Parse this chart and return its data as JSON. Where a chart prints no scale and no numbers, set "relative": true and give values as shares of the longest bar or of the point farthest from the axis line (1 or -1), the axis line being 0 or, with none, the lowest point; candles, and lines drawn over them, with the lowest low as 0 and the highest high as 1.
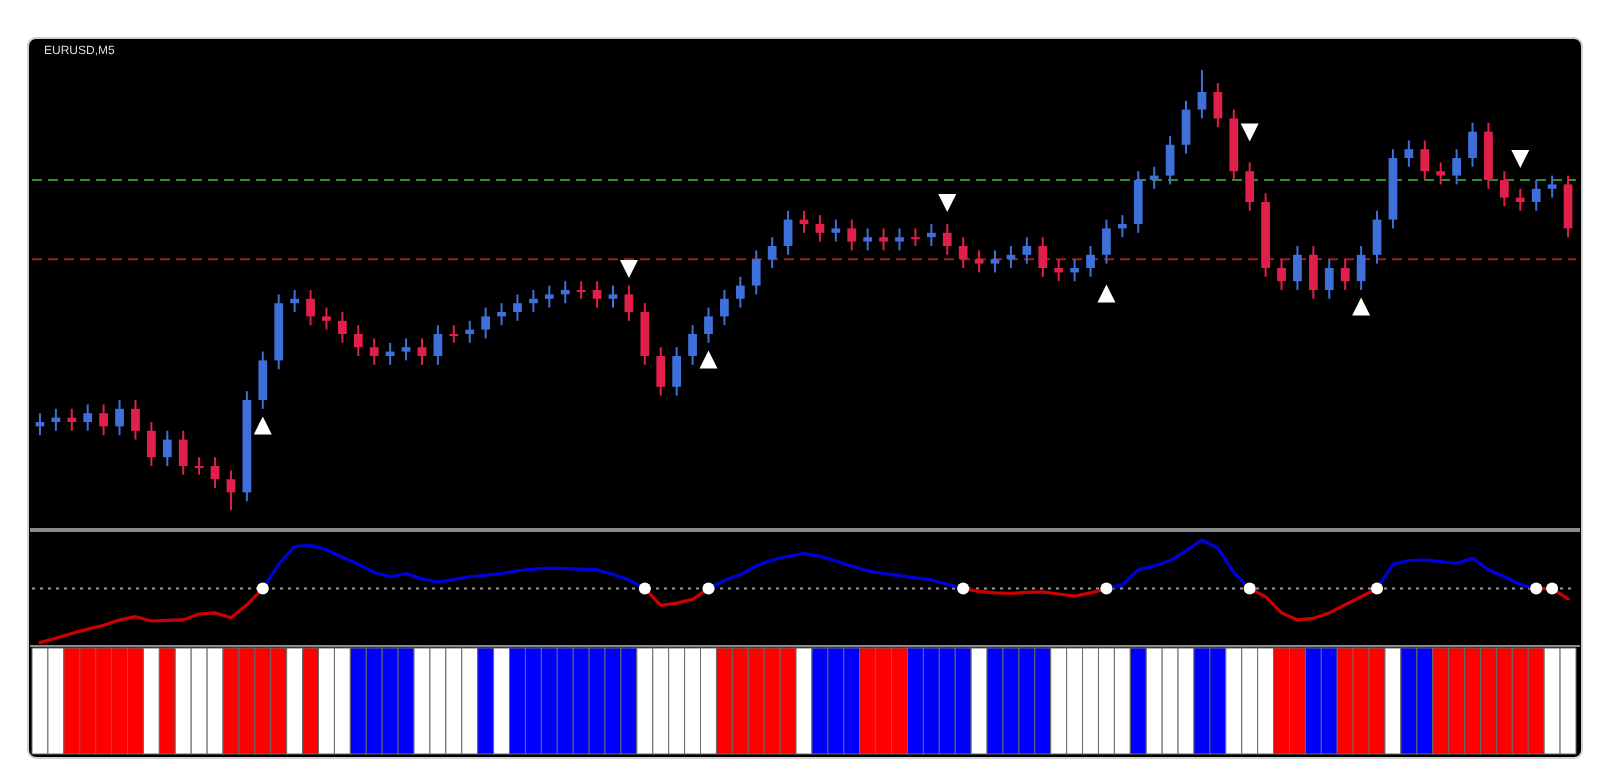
{
  "chart_data": [
    {
      "type": "candlestick",
      "title": "EURUSD,M5",
      "relative": true,
      "categories": [
        null,
        null,
        null,
        null,
        null,
        null,
        null,
        null,
        null,
        null,
        null,
        null,
        null,
        null,
        null,
        null,
        null,
        null,
        null,
        null,
        null,
        null,
        null,
        null,
        null,
        null,
        null,
        null,
        null,
        null,
        null,
        null,
        null,
        null,
        null,
        null,
        null,
        null,
        null,
        null,
        null,
        null,
        null,
        null,
        null,
        null,
        null,
        null,
        null,
        null,
        null,
        null,
        null,
        null,
        null,
        null,
        null,
        null,
        null,
        null,
        null,
        null,
        null,
        null,
        null,
        null,
        null,
        null,
        null,
        null,
        null,
        null,
        null,
        null,
        null,
        null,
        null,
        null,
        null,
        null,
        null,
        null,
        null,
        null,
        null,
        null,
        null,
        null,
        null,
        null,
        null,
        null,
        null,
        null,
        null,
        null,
        null
      ],
      "ohlc": [
        [
          0.19,
          0.22,
          0.17,
          0.2
        ],
        [
          0.2,
          0.23,
          0.18,
          0.21
        ],
        [
          0.21,
          0.23,
          0.18,
          0.2
        ],
        [
          0.2,
          0.24,
          0.18,
          0.22
        ],
        [
          0.22,
          0.24,
          0.17,
          0.19
        ],
        [
          0.19,
          0.25,
          0.17,
          0.23
        ],
        [
          0.23,
          0.25,
          0.16,
          0.18
        ],
        [
          0.18,
          0.2,
          0.1,
          0.12
        ],
        [
          0.12,
          0.18,
          0.1,
          0.16
        ],
        [
          0.16,
          0.18,
          0.08,
          0.1
        ],
        [
          0.1,
          0.12,
          0.08,
          0.1
        ],
        [
          0.1,
          0.12,
          0.05,
          0.07
        ],
        [
          0.07,
          0.09,
          0.0,
          0.04
        ],
        [
          0.04,
          0.27,
          0.02,
          0.25
        ],
        [
          0.25,
          0.36,
          0.23,
          0.34
        ],
        [
          0.34,
          0.49,
          0.32,
          0.47
        ],
        [
          0.47,
          0.5,
          0.45,
          0.48
        ],
        [
          0.48,
          0.5,
          0.42,
          0.44
        ],
        [
          0.44,
          0.46,
          0.41,
          0.43
        ],
        [
          0.43,
          0.45,
          0.38,
          0.4
        ],
        [
          0.4,
          0.42,
          0.35,
          0.37
        ],
        [
          0.37,
          0.39,
          0.33,
          0.35
        ],
        [
          0.35,
          0.38,
          0.33,
          0.36
        ],
        [
          0.36,
          0.39,
          0.34,
          0.37
        ],
        [
          0.37,
          0.39,
          0.33,
          0.35
        ],
        [
          0.35,
          0.42,
          0.33,
          0.4
        ],
        [
          0.4,
          0.42,
          0.38,
          0.4
        ],
        [
          0.4,
          0.43,
          0.38,
          0.41
        ],
        [
          0.41,
          0.46,
          0.39,
          0.44
        ],
        [
          0.44,
          0.47,
          0.42,
          0.45
        ],
        [
          0.45,
          0.49,
          0.43,
          0.47
        ],
        [
          0.47,
          0.5,
          0.45,
          0.48
        ],
        [
          0.48,
          0.51,
          0.46,
          0.49
        ],
        [
          0.49,
          0.52,
          0.47,
          0.5
        ],
        [
          0.5,
          0.52,
          0.48,
          0.5
        ],
        [
          0.5,
          0.52,
          0.46,
          0.48
        ],
        [
          0.48,
          0.51,
          0.46,
          0.49
        ],
        [
          0.49,
          0.51,
          0.43,
          0.45
        ],
        [
          0.45,
          0.47,
          0.33,
          0.35
        ],
        [
          0.35,
          0.37,
          0.26,
          0.28
        ],
        [
          0.28,
          0.37,
          0.26,
          0.35
        ],
        [
          0.35,
          0.42,
          0.33,
          0.4
        ],
        [
          0.4,
          0.46,
          0.38,
          0.44
        ],
        [
          0.44,
          0.5,
          0.42,
          0.48
        ],
        [
          0.48,
          0.53,
          0.46,
          0.51
        ],
        [
          0.51,
          0.59,
          0.49,
          0.57
        ],
        [
          0.57,
          0.62,
          0.55,
          0.6
        ],
        [
          0.6,
          0.68,
          0.58,
          0.66
        ],
        [
          0.66,
          0.68,
          0.63,
          0.65
        ],
        [
          0.65,
          0.67,
          0.61,
          0.63
        ],
        [
          0.63,
          0.66,
          0.61,
          0.64
        ],
        [
          0.64,
          0.66,
          0.59,
          0.61
        ],
        [
          0.61,
          0.64,
          0.59,
          0.62
        ],
        [
          0.62,
          0.64,
          0.59,
          0.61
        ],
        [
          0.61,
          0.64,
          0.59,
          0.62
        ],
        [
          0.62,
          0.64,
          0.6,
          0.62
        ],
        [
          0.62,
          0.65,
          0.6,
          0.63
        ],
        [
          0.63,
          0.65,
          0.58,
          0.6
        ],
        [
          0.6,
          0.62,
          0.55,
          0.57
        ],
        [
          0.57,
          0.59,
          0.54,
          0.56
        ],
        [
          0.56,
          0.59,
          0.54,
          0.57
        ],
        [
          0.57,
          0.6,
          0.55,
          0.58
        ],
        [
          0.58,
          0.62,
          0.56,
          0.6
        ],
        [
          0.6,
          0.62,
          0.53,
          0.55
        ],
        [
          0.55,
          0.57,
          0.52,
          0.54
        ],
        [
          0.54,
          0.57,
          0.52,
          0.55
        ],
        [
          0.55,
          0.6,
          0.53,
          0.58
        ],
        [
          0.58,
          0.66,
          0.56,
          0.64
        ],
        [
          0.64,
          0.67,
          0.62,
          0.65
        ],
        [
          0.65,
          0.77,
          0.63,
          0.75
        ],
        [
          0.75,
          0.78,
          0.73,
          0.76
        ],
        [
          0.76,
          0.85,
          0.74,
          0.83
        ],
        [
          0.83,
          0.93,
          0.81,
          0.91
        ],
        [
          0.91,
          1.0,
          0.89,
          0.95
        ],
        [
          0.95,
          0.97,
          0.87,
          0.89
        ],
        [
          0.89,
          0.91,
          0.75,
          0.77
        ],
        [
          0.77,
          0.79,
          0.68,
          0.7
        ],
        [
          0.7,
          0.72,
          0.53,
          0.55
        ],
        [
          0.55,
          0.57,
          0.5,
          0.52
        ],
        [
          0.52,
          0.6,
          0.5,
          0.58
        ],
        [
          0.58,
          0.6,
          0.48,
          0.5
        ],
        [
          0.5,
          0.57,
          0.48,
          0.55
        ],
        [
          0.55,
          0.57,
          0.5,
          0.52
        ],
        [
          0.52,
          0.6,
          0.5,
          0.58
        ],
        [
          0.58,
          0.68,
          0.56,
          0.66
        ],
        [
          0.66,
          0.82,
          0.64,
          0.8
        ],
        [
          0.8,
          0.84,
          0.78,
          0.82
        ],
        [
          0.82,
          0.84,
          0.75,
          0.77
        ],
        [
          0.77,
          0.79,
          0.74,
          0.76
        ],
        [
          0.76,
          0.82,
          0.74,
          0.8
        ],
        [
          0.8,
          0.88,
          0.78,
          0.86
        ],
        [
          0.86,
          0.88,
          0.73,
          0.75
        ],
        [
          0.75,
          0.77,
          0.69,
          0.71
        ],
        [
          0.71,
          0.73,
          0.68,
          0.7
        ],
        [
          0.7,
          0.75,
          0.68,
          0.73
        ],
        [
          0.73,
          0.76,
          0.71,
          0.74
        ],
        [
          0.74,
          0.76,
          0.62,
          0.64
        ]
      ],
      "colors": [
        "#3f6fd8",
        "#3f6fd8",
        "#e0204a",
        "#3f6fd8",
        "#e0204a",
        "#3f6fd8",
        "#e0204a",
        "#e0204a",
        "#3f6fd8",
        "#e0204a",
        "#e0204a",
        "#e0204a",
        "#e0204a",
        "#3f6fd8",
        "#3f6fd8",
        "#3f6fd8",
        "#3f6fd8",
        "#e0204a",
        "#e0204a",
        "#e0204a",
        "#e0204a",
        "#e0204a",
        "#3f6fd8",
        "#3f6fd8",
        "#e0204a",
        "#3f6fd8",
        "#e0204a",
        "#3f6fd8",
        "#3f6fd8",
        "#3f6fd8",
        "#3f6fd8",
        "#3f6fd8",
        "#3f6fd8",
        "#3f6fd8",
        "#e0204a",
        "#e0204a",
        "#3f6fd8",
        "#e0204a",
        "#e0204a",
        "#e0204a",
        "#3f6fd8",
        "#3f6fd8",
        "#3f6fd8",
        "#3f6fd8",
        "#3f6fd8",
        "#3f6fd8",
        "#3f6fd8",
        "#3f6fd8",
        "#e0204a",
        "#e0204a",
        "#3f6fd8",
        "#e0204a",
        "#3f6fd8",
        "#e0204a",
        "#3f6fd8",
        "#e0204a",
        "#3f6fd8",
        "#e0204a",
        "#e0204a",
        "#e0204a",
        "#3f6fd8",
        "#3f6fd8",
        "#3f6fd8",
        "#e0204a",
        "#e0204a",
        "#3f6fd8",
        "#3f6fd8",
        "#3f6fd8",
        "#3f6fd8",
        "#3f6fd8",
        "#3f6fd8",
        "#3f6fd8",
        "#3f6fd8",
        "#3f6fd8",
        "#e0204a",
        "#e0204a",
        "#e0204a",
        "#e0204a",
        "#e0204a",
        "#3f6fd8",
        "#e0204a",
        "#3f6fd8",
        "#e0204a",
        "#3f6fd8",
        "#3f6fd8",
        "#3f6fd8",
        "#3f6fd8",
        "#e0204a",
        "#e0204a",
        "#3f6fd8",
        "#3f6fd8",
        "#e0204a",
        "#e0204a",
        "#e0204a",
        "#3f6fd8",
        "#3f6fd8",
        "#e0204a"
      ],
      "ref_lines": [
        {
          "axis": "y",
          "value": 0.75,
          "color": "#2f8f2f",
          "line_style": "dashed"
        },
        {
          "axis": "y",
          "value": 0.57,
          "color": "#a01c1c",
          "line_style": "dashed"
        }
      ],
      "series": [
        {
          "type": "scatter",
          "marker": "triangle",
          "color": "#ffffff",
          "values": [
            null,
            null,
            null,
            null,
            null,
            null,
            null,
            null,
            null,
            null,
            null,
            null,
            null,
            null,
            0.19,
            null,
            null,
            null,
            null,
            null,
            null,
            null,
            null,
            null,
            null,
            null,
            null,
            null,
            null,
            null,
            null,
            null,
            null,
            null,
            null,
            null,
            null,
            null,
            null,
            null,
            null,
            null,
            0.34,
            null,
            null,
            null,
            null,
            null,
            null,
            null,
            null,
            null,
            null,
            null,
            null,
            null,
            null,
            null,
            null,
            null,
            null,
            null,
            null,
            null,
            null,
            null,
            null,
            0.49,
            null,
            null,
            null,
            null,
            null,
            null,
            null,
            null,
            null,
            null,
            null,
            null,
            null,
            null,
            null,
            0.46,
            null,
            null,
            null,
            null,
            null,
            null,
            null,
            null,
            null,
            null,
            null,
            null,
            null
          ]
        },
        {
          "type": "scatter",
          "marker": "triangle",
          "color": "#ffffff",
          "values": [
            null,
            null,
            null,
            null,
            null,
            null,
            null,
            null,
            null,
            null,
            null,
            null,
            null,
            null,
            null,
            null,
            null,
            null,
            null,
            null,
            null,
            null,
            null,
            null,
            null,
            null,
            null,
            null,
            null,
            null,
            null,
            null,
            null,
            null,
            null,
            null,
            null,
            0.55,
            null,
            null,
            null,
            null,
            null,
            null,
            null,
            null,
            null,
            null,
            null,
            null,
            null,
            null,
            null,
            null,
            null,
            null,
            null,
            0.7,
            null,
            null,
            null,
            null,
            null,
            null,
            null,
            null,
            null,
            null,
            null,
            null,
            null,
            null,
            null,
            null,
            null,
            null,
            0.86,
            null,
            null,
            null,
            null,
            null,
            null,
            null,
            null,
            null,
            null,
            null,
            null,
            null,
            null,
            null,
            null,
            0.8,
            null,
            null,
            null
          ]
        }
      ]
    },
    {
      "type": "line",
      "relative": true,
      "categories": [
        null,
        null,
        null,
        null,
        null,
        null,
        null,
        null,
        null,
        null,
        null,
        null,
        null,
        null,
        null,
        null,
        null,
        null,
        null,
        null,
        null,
        null,
        null,
        null,
        null,
        null,
        null,
        null,
        null,
        null,
        null,
        null,
        null,
        null,
        null,
        null,
        null,
        null,
        null,
        null,
        null,
        null,
        null,
        null,
        null,
        null,
        null,
        null,
        null,
        null,
        null,
        null,
        null,
        null,
        null,
        null,
        null,
        null,
        null,
        null,
        null,
        null,
        null,
        null,
        null,
        null,
        null,
        null,
        null,
        null,
        null,
        null,
        null,
        null,
        null,
        null,
        null,
        null,
        null,
        null,
        null,
        null,
        null,
        null,
        null,
        null,
        null,
        null,
        null,
        null,
        null,
        null,
        null,
        null,
        null,
        null,
        null
      ],
      "ref_lines": [
        {
          "axis": "y",
          "value": 0,
          "color": "#9a9a9a",
          "line_style": "dotted"
        }
      ],
      "series": [
        {
          "type": "line",
          "color": "#0000dd",
          "values": [
            null,
            null,
            null,
            null,
            null,
            null,
            null,
            null,
            null,
            null,
            null,
            null,
            null,
            null,
            0,
            0.45,
            0.78,
            0.8,
            0.72,
            0.58,
            0.45,
            0.3,
            0.22,
            0.28,
            0.18,
            0.12,
            0.17,
            0.22,
            0.25,
            0.28,
            0.33,
            0.36,
            0.38,
            0.37,
            0.36,
            0.35,
            0.26,
            0.16,
            0,
            null,
            null,
            null,
            0,
            0.15,
            0.26,
            0.42,
            0.53,
            0.6,
            0.65,
            0.6,
            0.51,
            0.42,
            0.33,
            0.28,
            0.24,
            0.2,
            0.16,
            0.08,
            0,
            null,
            null,
            null,
            null,
            null,
            null,
            null,
            null,
            0,
            0.07,
            0.35,
            0.42,
            0.52,
            0.7,
            0.9,
            0.75,
            0.3,
            0,
            null,
            null,
            null,
            null,
            null,
            null,
            null,
            0,
            0.45,
            0.52,
            0.53,
            0.5,
            0.47,
            0.56,
            0.35,
            0.22,
            0.08,
            0,
            null,
            null
          ]
        },
        {
          "type": "line",
          "color": "#cc0000",
          "values": [
            -1,
            -0.92,
            -0.83,
            -0.75,
            -0.68,
            -0.58,
            -0.52,
            -0.6,
            -0.59,
            -0.58,
            -0.47,
            -0.45,
            -0.54,
            -0.3,
            0,
            null,
            null,
            null,
            null,
            null,
            null,
            null,
            null,
            null,
            null,
            null,
            null,
            null,
            null,
            null,
            null,
            null,
            null,
            null,
            null,
            null,
            null,
            null,
            0,
            -0.31,
            -0.27,
            -0.2,
            0,
            null,
            null,
            null,
            null,
            null,
            null,
            null,
            null,
            null,
            null,
            null,
            null,
            null,
            null,
            null,
            0,
            -0.05,
            -0.08,
            -0.09,
            -0.07,
            -0.06,
            -0.1,
            -0.14,
            -0.08,
            0,
            null,
            null,
            null,
            null,
            null,
            null,
            null,
            null,
            0,
            -0.15,
            -0.45,
            -0.58,
            -0.55,
            -0.45,
            -0.3,
            -0.15,
            0,
            null,
            null,
            null,
            null,
            null,
            null,
            null,
            null,
            null,
            0,
            0,
            -0.19
          ]
        },
        {
          "type": "scatter",
          "marker": "circle",
          "color": "#ffffff",
          "values": [
            null,
            null,
            null,
            null,
            null,
            null,
            null,
            null,
            null,
            null,
            null,
            null,
            null,
            null,
            0,
            null,
            null,
            null,
            null,
            null,
            null,
            null,
            null,
            null,
            null,
            null,
            null,
            null,
            null,
            null,
            null,
            null,
            null,
            null,
            null,
            null,
            null,
            null,
            0,
            null,
            null,
            null,
            0,
            null,
            null,
            null,
            null,
            null,
            null,
            null,
            null,
            null,
            null,
            null,
            null,
            null,
            null,
            null,
            0,
            null,
            null,
            null,
            null,
            null,
            null,
            null,
            null,
            0,
            null,
            null,
            null,
            null,
            null,
            null,
            null,
            null,
            0,
            null,
            null,
            null,
            null,
            null,
            null,
            null,
            0,
            null,
            null,
            null,
            null,
            null,
            null,
            null,
            null,
            null,
            0,
            0,
            null
          ]
        }
      ]
    },
    {
      "type": "bar",
      "relative": true,
      "categories": [
        null,
        null,
        null,
        null,
        null,
        null,
        null,
        null,
        null,
        null,
        null,
        null,
        null,
        null,
        null,
        null,
        null,
        null,
        null,
        null,
        null,
        null,
        null,
        null,
        null,
        null,
        null,
        null,
        null,
        null,
        null,
        null,
        null,
        null,
        null,
        null,
        null,
        null,
        null,
        null,
        null,
        null,
        null,
        null,
        null,
        null,
        null,
        null,
        null,
        null,
        null,
        null,
        null,
        null,
        null,
        null,
        null,
        null,
        null,
        null,
        null,
        null,
        null,
        null,
        null,
        null,
        null,
        null,
        null,
        null,
        null,
        null,
        null,
        null,
        null,
        null,
        null,
        null,
        null,
        null,
        null,
        null,
        null,
        null,
        null,
        null,
        null,
        null,
        null,
        null,
        null,
        null,
        null,
        null,
        null,
        null,
        null
      ],
      "values": [
        1,
        1,
        1,
        1,
        1,
        1,
        1,
        1,
        1,
        1,
        1,
        1,
        1,
        1,
        1,
        1,
        1,
        1,
        1,
        1,
        1,
        1,
        1,
        1,
        1,
        1,
        1,
        1,
        1,
        1,
        1,
        1,
        1,
        1,
        1,
        1,
        1,
        1,
        1,
        1,
        1,
        1,
        1,
        1,
        1,
        1,
        1,
        1,
        1,
        1,
        1,
        1,
        1,
        1,
        1,
        1,
        1,
        1,
        1,
        1,
        1,
        1,
        1,
        1,
        1,
        1,
        1,
        1,
        1,
        1,
        1,
        1,
        1,
        1,
        1,
        1,
        1,
        1,
        1,
        1,
        1,
        1,
        1,
        1,
        1,
        1,
        1,
        1,
        1,
        1,
        1,
        1,
        1,
        1,
        1,
        1,
        1
      ],
      "colors": [
        "#ffffff",
        "#ffffff",
        "#ff0000",
        "#ff0000",
        "#ff0000",
        "#ff0000",
        "#ff0000",
        "#ffffff",
        "#ff0000",
        "#ffffff",
        "#ffffff",
        "#ffffff",
        "#ff0000",
        "#ff0000",
        "#ff0000",
        "#ff0000",
        "#ffffff",
        "#ff0000",
        "#ffffff",
        "#ffffff",
        "#0000ff",
        "#0000ff",
        "#0000ff",
        "#0000ff",
        "#ffffff",
        "#ffffff",
        "#ffffff",
        "#ffffff",
        "#0000ff",
        "#ffffff",
        "#0000ff",
        "#0000ff",
        "#0000ff",
        "#0000ff",
        "#0000ff",
        "#0000ff",
        "#0000ff",
        "#0000ff",
        "#ffffff",
        "#ffffff",
        "#ffffff",
        "#ffffff",
        "#ffffff",
        "#ff0000",
        "#ff0000",
        "#ff0000",
        "#ff0000",
        "#ff0000",
        "#ffffff",
        "#0000ff",
        "#0000ff",
        "#0000ff",
        "#ff0000",
        "#ff0000",
        "#ff0000",
        "#0000ff",
        "#0000ff",
        "#0000ff",
        "#0000ff",
        "#ffffff",
        "#0000ff",
        "#0000ff",
        "#0000ff",
        "#0000ff",
        "#ffffff",
        "#ffffff",
        "#ffffff",
        "#ffffff",
        "#ffffff",
        "#0000ff",
        "#ffffff",
        "#ffffff",
        "#ffffff",
        "#0000ff",
        "#0000ff",
        "#ffffff",
        "#ffffff",
        "#ffffff",
        "#ff0000",
        "#ff0000",
        "#0000ff",
        "#0000ff",
        "#ff0000",
        "#ff0000",
        "#ff0000",
        "#ffffff",
        "#0000ff",
        "#0000ff",
        "#ff0000",
        "#ff0000",
        "#ff0000",
        "#ff0000",
        "#ff0000",
        "#ff0000",
        "#ff0000",
        "#ffffff",
        "#ffffff"
      ]
    }
  ]
}
